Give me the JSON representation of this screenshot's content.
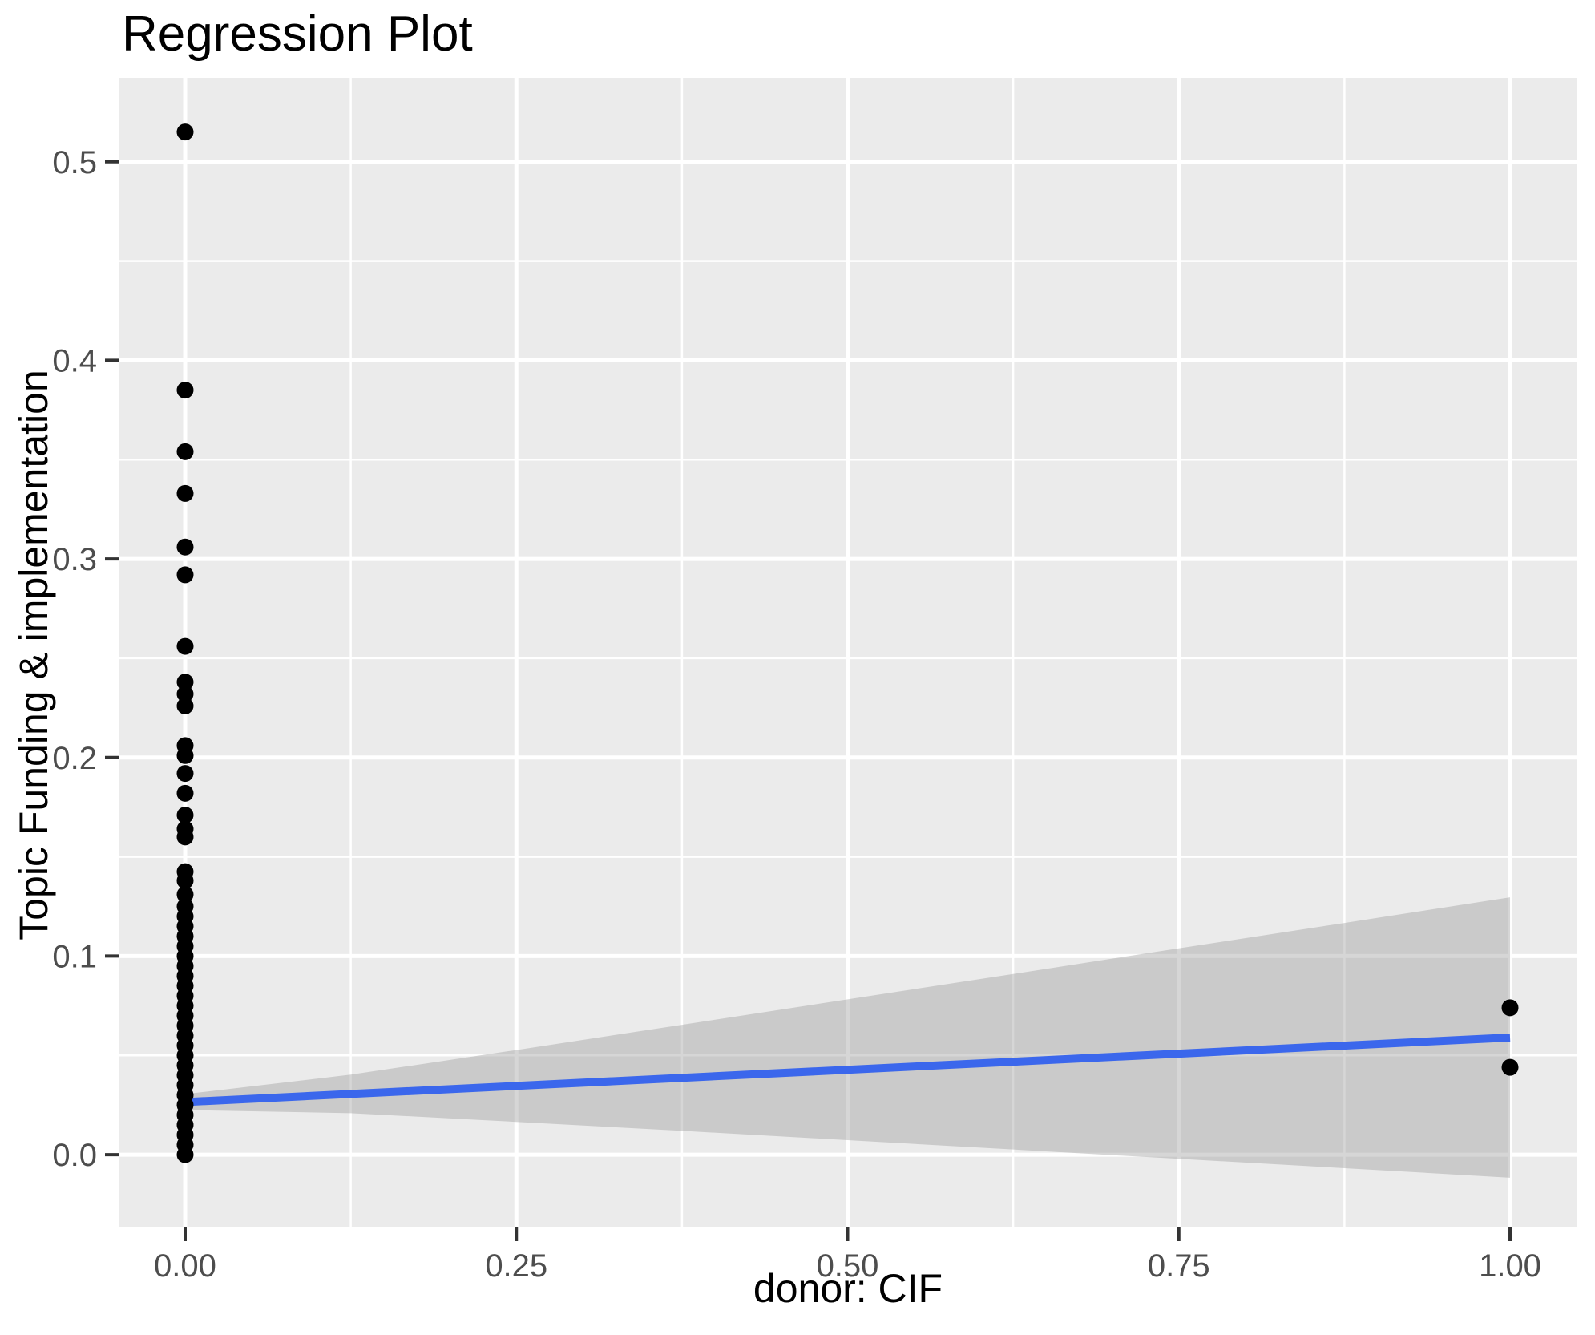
{
  "chart_data": {
    "type": "scatter",
    "title": "Regression Plot",
    "xlabel": "donor: CIF",
    "ylabel": "Topic Funding & implementation",
    "xlim": [
      -0.0496,
      1.0502
    ],
    "ylim": [
      -0.0363,
      0.5423
    ],
    "grid": true,
    "legend": "none",
    "x_ticks": {
      "values": [
        0,
        0.25,
        0.5,
        0.75,
        1
      ],
      "labels": [
        "0.00",
        "0.25",
        "0.50",
        "0.75",
        "1.00"
      ]
    },
    "y_ticks": {
      "values": [
        0,
        0.1,
        0.2,
        0.3,
        0.4,
        0.5
      ],
      "labels": [
        "0.0",
        "0.1",
        "0.2",
        "0.3",
        "0.4",
        "0.5"
      ]
    },
    "x_minor": [
      0.125,
      0.375,
      0.625,
      0.875
    ],
    "y_minor": [
      0.05,
      0.15,
      0.25,
      0.35,
      0.45
    ],
    "series": [
      {
        "name": "observations at donor=0",
        "x": 0,
        "y": [
          0.515,
          0.385,
          0.354,
          0.333,
          0.306,
          0.292,
          0.256,
          0.238,
          0.232,
          0.226,
          0.206,
          0.201,
          0.192,
          0.182,
          0.171,
          0.164,
          0.16,
          0.1425,
          0.138,
          0.131,
          0.125,
          0.12,
          0.115,
          0.11,
          0.105,
          0.1,
          0.095,
          0.09,
          0.085,
          0.08,
          0.075,
          0.07,
          0.065,
          0.06,
          0.055,
          0.05,
          0.045,
          0.04,
          0.035,
          0.03,
          0.025,
          0.02,
          0.015,
          0.01,
          0.005,
          0.0
        ]
      },
      {
        "name": "observations at donor=1",
        "x": 1,
        "y": [
          0.074,
          0.044
        ]
      }
    ],
    "regression_line": {
      "x": [
        0,
        1
      ],
      "y": [
        0.0265,
        0.059
      ]
    },
    "confidence_band": {
      "x": [
        0,
        0.125,
        0.25,
        0.375,
        0.5,
        0.625,
        0.75,
        0.875,
        1
      ],
      "upper": [
        0.0305,
        0.0403,
        0.0527,
        0.0654,
        0.0782,
        0.091,
        0.1039,
        0.1167,
        0.1296
      ],
      "lower": [
        0.0225,
        0.0209,
        0.0165,
        0.012,
        0.0073,
        0.0026,
        -0.0021,
        -0.0068,
        -0.0116
      ]
    },
    "colors": {
      "plot_bg": "#FFFFFF",
      "panel_bg": "#EBEBEB",
      "grid": "#FFFFFF",
      "band": "rgba(153,153,153,0.40)",
      "line": "#3B67EC",
      "point": "#000000",
      "tick_text": "#4D4D4D",
      "tick_mark": "#333333",
      "label_text": "#000000"
    }
  }
}
